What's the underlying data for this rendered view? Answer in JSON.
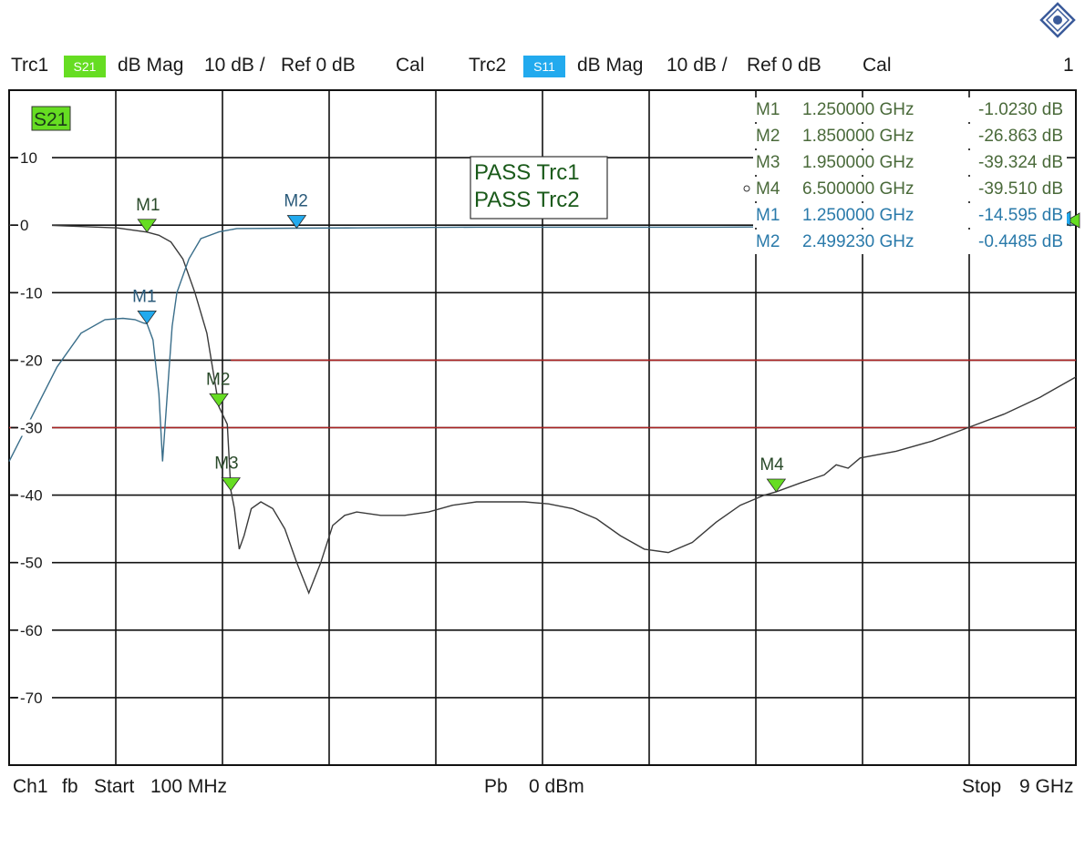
{
  "header": {
    "trc1": {
      "name": "Trc1",
      "param": "S21",
      "format": "dB Mag",
      "scale": "10 dB /",
      "ref": "Ref 0 dB",
      "cal": "Cal"
    },
    "trc2": {
      "name": "Trc2",
      "param": "S11",
      "format": "dB Mag",
      "scale": "10 dB /",
      "ref": "Ref 0 dB",
      "cal": "Cal"
    },
    "window_number": "1"
  },
  "footer": {
    "channel": "Ch1",
    "fb": "fb",
    "start_label": "Start",
    "start": "100 MHz",
    "power_label": "Pb",
    "power": "0 dBm",
    "stop_label": "Stop",
    "stop": "9 GHz"
  },
  "colors": {
    "trc1": "#66dd22",
    "trc2": "#22aaee",
    "trace1_line": "#3a3a3a",
    "trace2_line": "#3a6e8a",
    "limit": "#aa2222",
    "grid": "#111111",
    "pass_text": "#1a5a1a"
  },
  "chart_data": {
    "type": "line",
    "x_unit": "GHz",
    "y_unit": "dB",
    "xlim": [
      0.1,
      9.0
    ],
    "ylim": [
      -80,
      20
    ],
    "grid": true,
    "diagram_tag": "S21",
    "ytick_labels": [
      "10",
      "0",
      "-10",
      "-20",
      "-30",
      "-40",
      "-50",
      "-60",
      "-70"
    ],
    "ytick_values": [
      10,
      0,
      -10,
      -20,
      -30,
      -40,
      -50,
      -60,
      -70
    ],
    "pass_messages": [
      "PASS Trc1",
      "PASS Trc2"
    ],
    "limit_lines": [
      {
        "x": [
          1.95,
          9.0
        ],
        "y": [
          -20,
          -20
        ]
      },
      {
        "x": [
          0.1,
          9.0
        ],
        "y": [
          -30,
          -30
        ]
      }
    ],
    "series": [
      {
        "trace": "trc1",
        "x": [
          0.1,
          0.4,
          0.7,
          1.0,
          1.25,
          1.35,
          1.45,
          1.55,
          1.65,
          1.75,
          1.85,
          1.92,
          1.95,
          1.98,
          2.02,
          2.06,
          2.12,
          2.2,
          2.3,
          2.4,
          2.5,
          2.6,
          2.7,
          2.8,
          2.9,
          3.0,
          3.2,
          3.4,
          3.6,
          3.8,
          4.0,
          4.2,
          4.4,
          4.6,
          4.8,
          5.0,
          5.2,
          5.4,
          5.6,
          5.8,
          6.0,
          6.2,
          6.4,
          6.5,
          6.7,
          6.9,
          7.0,
          7.1,
          7.2,
          7.5,
          7.8,
          8.1,
          8.4,
          8.7,
          9.0
        ],
        "y": [
          0,
          0,
          -0.2,
          -0.4,
          -1.02,
          -1.5,
          -2.5,
          -5,
          -10,
          -16,
          -26.9,
          -29.5,
          -39.3,
          -42,
          -48,
          -46,
          -42,
          -41,
          -42,
          -45,
          -50,
          -54.5,
          -50,
          -44.5,
          -43,
          -42.5,
          -43,
          -43,
          -42.5,
          -41.5,
          -41,
          -41,
          -41,
          -41.3,
          -42,
          -43.5,
          -46,
          -48,
          -48.5,
          -47,
          -44,
          -41.5,
          -40,
          -39.5,
          -38.2,
          -37,
          -35.5,
          -36,
          -34.5,
          -33.5,
          -32,
          -30,
          -28,
          -25.5,
          -22.5
        ]
      },
      {
        "trace": "trc2",
        "x": [
          0.1,
          0.3,
          0.5,
          0.7,
          0.9,
          1.05,
          1.15,
          1.22,
          1.25,
          1.3,
          1.35,
          1.38,
          1.42,
          1.46,
          1.5,
          1.6,
          1.7,
          1.85,
          2.0,
          2.5,
          3.0,
          4.0,
          5.0,
          6.0,
          7.0,
          8.0,
          8.7,
          9.0
        ],
        "y": [
          -35,
          -28,
          -21,
          -16,
          -14,
          -13.8,
          -14,
          -14.5,
          -14.6,
          -17,
          -25,
          -35,
          -25,
          -15,
          -10,
          -5,
          -2,
          -1,
          -0.5,
          -0.45,
          -0.4,
          -0.3,
          -0.3,
          -0.3,
          -0.2,
          -0.1,
          0,
          0
        ]
      }
    ],
    "markers": [
      {
        "trace": "trc1",
        "label": "M1",
        "x": 1.25,
        "y": -1.023
      },
      {
        "trace": "trc1",
        "label": "M2",
        "x": 1.85,
        "y": -26.863
      },
      {
        "trace": "trc1",
        "label": "M3",
        "x": 1.95,
        "y": -39.324
      },
      {
        "trace": "trc1",
        "label": "M4",
        "x": 6.5,
        "y": -39.51
      },
      {
        "trace": "trc2",
        "label": "M1",
        "x": 1.25,
        "y": -14.595
      },
      {
        "trace": "trc2",
        "label": "M2",
        "x": 2.49923,
        "y": -0.4485
      }
    ],
    "marker_table": [
      {
        "trace": "trc1",
        "name": "M1",
        "freq": "1.250000 GHz",
        "value": "-1.0230 dB"
      },
      {
        "trace": "trc1",
        "name": "M2",
        "freq": "1.850000 GHz",
        "value": "-26.863 dB"
      },
      {
        "trace": "trc1",
        "name": "M3",
        "freq": "1.950000 GHz",
        "value": "-39.324 dB"
      },
      {
        "trace": "trc1",
        "name": "M4",
        "freq": "6.500000 GHz",
        "value": "-39.510 dB",
        "active": true
      },
      {
        "trace": "trc2",
        "name": "M1",
        "freq": "1.250000 GHz",
        "value": "-14.595 dB"
      },
      {
        "trace": "trc2",
        "name": "M2",
        "freq": "2.499230 GHz",
        "value": "-0.4485 dB"
      }
    ]
  }
}
